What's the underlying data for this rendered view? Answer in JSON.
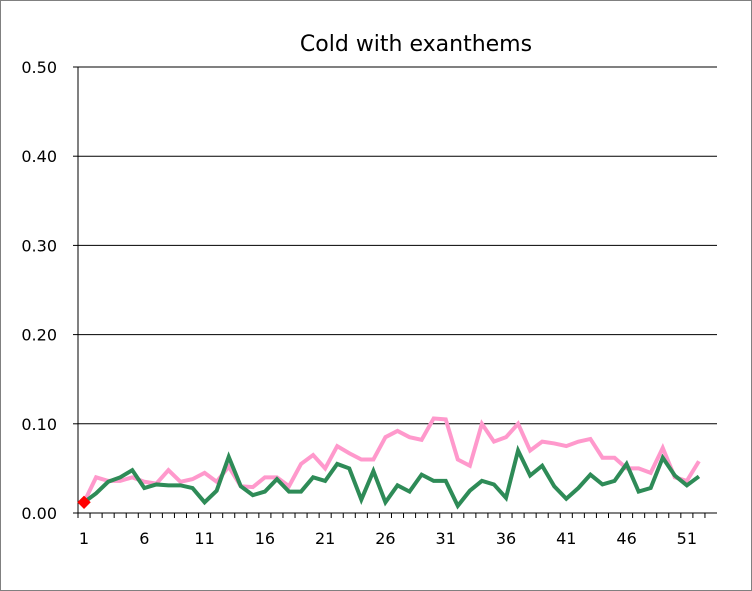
{
  "chart_data": {
    "type": "line",
    "title": "Cold with exanthems",
    "xlabel": "",
    "ylabel": "",
    "x": [
      1,
      2,
      3,
      4,
      5,
      6,
      7,
      8,
      9,
      10,
      11,
      12,
      13,
      14,
      15,
      16,
      17,
      18,
      19,
      20,
      21,
      22,
      23,
      24,
      25,
      26,
      27,
      28,
      29,
      30,
      31,
      32,
      33,
      34,
      35,
      36,
      37,
      38,
      39,
      40,
      41,
      42,
      43,
      44,
      45,
      46,
      47,
      48,
      49,
      50,
      51,
      52
    ],
    "x_tick_labels": [
      "1",
      "6",
      "11",
      "16",
      "21",
      "26",
      "31",
      "36",
      "41",
      "46",
      "51"
    ],
    "x_tick_values": [
      1,
      6,
      11,
      16,
      21,
      26,
      31,
      36,
      41,
      46,
      51
    ],
    "xlim": [
      0.5,
      53.5
    ],
    "y_tick_labels": [
      "0.00",
      "0.10",
      "0.20",
      "0.30",
      "0.40",
      "0.50"
    ],
    "y_tick_values": [
      0,
      0.1,
      0.2,
      0.3,
      0.4,
      0.5
    ],
    "ylim": [
      0,
      0.5
    ],
    "grid": true,
    "series": [
      {
        "color": "#ff99cc",
        "values": [
          0.012,
          0.04,
          0.036,
          0.036,
          0.04,
          0.035,
          0.033,
          0.048,
          0.035,
          0.038,
          0.045,
          0.035,
          0.052,
          0.03,
          0.029,
          0.04,
          0.04,
          0.03,
          0.055,
          0.065,
          0.05,
          0.075,
          0.067,
          0.06,
          0.06,
          0.085,
          0.092,
          0.085,
          0.082,
          0.106,
          0.105,
          0.06,
          0.053,
          0.1,
          0.08,
          0.085,
          0.1,
          0.07,
          0.08,
          0.078,
          0.075,
          0.08,
          0.083,
          0.062,
          0.062,
          0.05,
          0.05,
          0.045,
          0.073,
          0.04,
          0.036,
          0.058
        ]
      },
      {
        "color": "#2e8b57",
        "values": [
          0.012,
          0.022,
          0.035,
          0.04,
          0.048,
          0.028,
          0.032,
          0.031,
          0.031,
          0.028,
          0.012,
          0.025,
          0.063,
          0.03,
          0.02,
          0.024,
          0.038,
          0.024,
          0.024,
          0.04,
          0.036,
          0.055,
          0.05,
          0.015,
          0.047,
          0.012,
          0.031,
          0.024,
          0.043,
          0.036,
          0.036,
          0.008,
          0.025,
          0.036,
          0.032,
          0.017,
          0.07,
          0.042,
          0.053,
          0.03,
          0.016,
          0.028,
          0.043,
          0.032,
          0.036,
          0.055,
          0.024,
          0.028,
          0.062,
          0.042,
          0.031,
          0.041
        ]
      }
    ],
    "marker": {
      "x": 1,
      "y": 0.012,
      "color": "#ff0000",
      "shape": "diamond"
    }
  }
}
